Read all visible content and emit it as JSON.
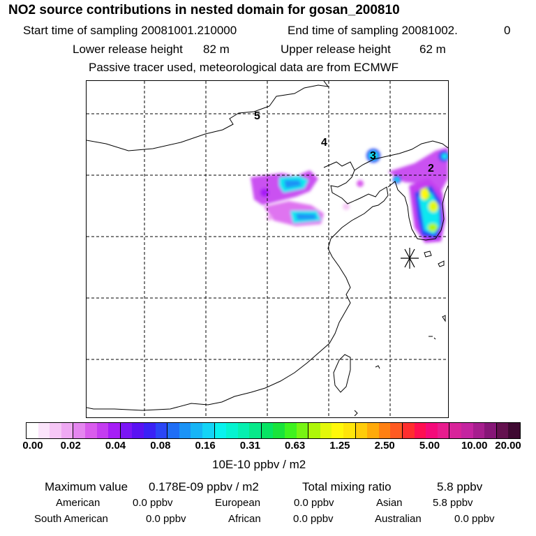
{
  "header": {
    "title": "NO2 source contributions in nested domain for gosan_200810",
    "start_label": "Start time of sampling 20081001.210000",
    "end_label": "End time of sampling 20081002.",
    "end_suffix": "0",
    "lower_label": "Lower release height",
    "lower_value": "82 m",
    "upper_label": "Upper release height",
    "upper_value": "62 m",
    "note": "Passive tracer used, meteorological data are from ECMWF"
  },
  "map": {
    "source_numbers": [
      "5",
      "4",
      "3",
      "2"
    ],
    "receptor_marker": "gosan-receptor"
  },
  "colorbar": {
    "ticks": [
      "0.00",
      "0.02",
      "0.04",
      "0.08",
      "0.16",
      "0.31",
      "0.63",
      "1.25",
      "2.50",
      "5.00",
      "10.00",
      "20.00"
    ],
    "colors": [
      "#ffffff",
      "#fbe4fb",
      "#f6c7f6",
      "#efa9f3",
      "#e586f0",
      "#d95ced",
      "#c43df0",
      "#a61ef6",
      "#7b15f5",
      "#5a12f2",
      "#3a22f5",
      "#2b46f6",
      "#206ef5",
      "#1b93f6",
      "#17b5f6",
      "#14d4f6",
      "#08f2ee",
      "#05f3d0",
      "#06f0b0",
      "#07e98a",
      "#06e463",
      "#19e33b",
      "#3ff21f",
      "#77f413",
      "#aef609",
      "#e3f80a",
      "#fff80a",
      "#ffe50a",
      "#ffcc0a",
      "#ffaa0a",
      "#ff8012",
      "#ff5a22",
      "#ff2e2e",
      "#ff0f52",
      "#f40a7a",
      "#e81c8e",
      "#d8239a",
      "#c424a0",
      "#a61e8e",
      "#861677",
      "#64114f",
      "#3f0932"
    ],
    "unit": "10E-10 ppbv / m2"
  },
  "summary": {
    "max_label": "Maximum value",
    "max_value": "0.178E-09 ppbv / m2",
    "total_label": "Total mixing ratio",
    "total_value": "5.8 ppbv"
  },
  "regions": [
    {
      "name": "American",
      "value": "0.0 ppbv"
    },
    {
      "name": "European",
      "value": "0.0 ppbv"
    },
    {
      "name": "Asian",
      "value": "5.8 ppbv"
    },
    {
      "name": "South American",
      "value": "0.0 ppbv"
    },
    {
      "name": "African",
      "value": "0.0 ppbv"
    },
    {
      "name": "Australian",
      "value": "0.0 ppbv"
    }
  ]
}
